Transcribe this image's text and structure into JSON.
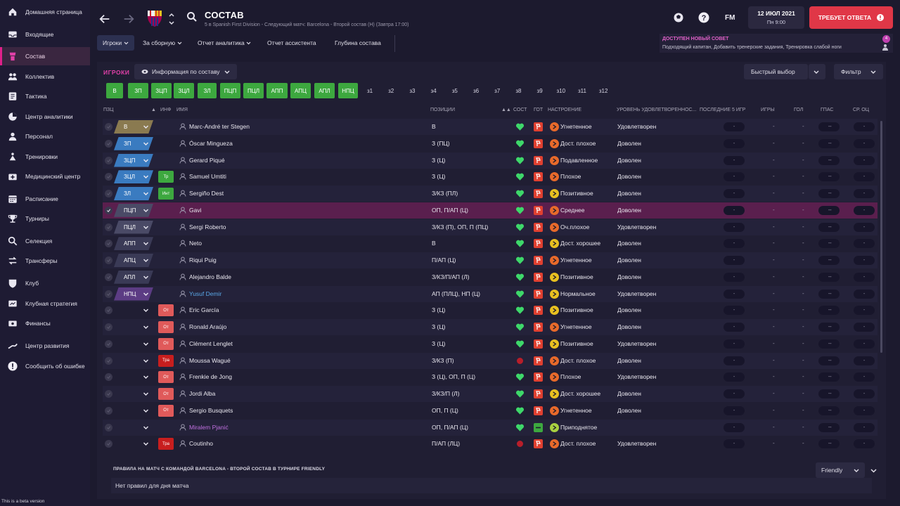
{
  "sidebar": {
    "items": [
      {
        "label": "Домашняя страница",
        "icon": "home-icon"
      },
      {
        "label": "Входящие",
        "icon": "inbox-icon"
      },
      {
        "label": "Состав",
        "icon": "squad-icon"
      },
      {
        "label": "Коллектив",
        "icon": "team-icon"
      },
      {
        "label": "Тактика",
        "icon": "tactics-icon"
      },
      {
        "label": "Центр аналитики",
        "icon": "analytics-icon"
      },
      {
        "label": "Персонал",
        "icon": "staff-icon"
      },
      {
        "label": "Тренировки",
        "icon": "training-icon"
      },
      {
        "label": "Медицинский центр",
        "icon": "medical-icon"
      },
      {
        "label": "Расписание",
        "icon": "calendar-icon"
      },
      {
        "label": "Турниры",
        "icon": "trophy-icon"
      },
      {
        "label": "Селекция",
        "icon": "scouting-icon"
      },
      {
        "label": "Трансферы",
        "icon": "transfers-icon"
      },
      {
        "label": "Клуб",
        "icon": "club-icon"
      },
      {
        "label": "Клубная стратегия",
        "icon": "strategy-icon"
      },
      {
        "label": "Финансы",
        "icon": "finance-icon"
      },
      {
        "label": "Центр развития",
        "icon": "development-icon"
      },
      {
        "label": "Сообщить об ошибке",
        "icon": "bug-report-icon"
      }
    ],
    "active_index": 2,
    "beta_note": "This is a beta version"
  },
  "header": {
    "title": "СОСТАВ",
    "subtitle": "5 в Spanish First Division - Следующий матч: Barcelona - Второй состав (Н) (Завтра 17:00)",
    "fm_label": "FM",
    "date": "12 ИЮЛ 2021",
    "time": "Пн 9:00",
    "response_label": "ТРЕБУЕТ ОТВЕТА",
    "tabs": [
      "Игроки",
      "За сборную",
      "Отчет аналитика",
      "Отчет ассистента",
      "Глубина состава"
    ],
    "notice_title": "ДОСТУПЕН НОВЫЙ СОВЕТ",
    "notice_text": "Подходящий капитан, Добавить тренерские задания, Тренировка слабой ноги",
    "notice_count": "4"
  },
  "main": {
    "section_title": "ИГРОКИ",
    "view_select": "Информация по составу",
    "quick_pick": "Быстрый выбор",
    "filter": "Фильтр",
    "position_filters": [
      "В",
      "ЗП",
      "ЗЦП",
      "ЗЦЛ",
      "ЗЛ",
      "ПЦП",
      "ПЦЛ",
      "АПП",
      "АПЦ",
      "АПЛ",
      "НПЦ"
    ],
    "number_filters": [
      "з1",
      "з2",
      "з3",
      "з4",
      "з5",
      "з6",
      "з7",
      "з8",
      "з9",
      "з10",
      "з11",
      "з12"
    ],
    "columns": {
      "pos": "ПЗЦ",
      "inf": "ИНФ",
      "name": "ИМЯ",
      "positions": "ПОЗИЦИИ",
      "cond": "СОСТ",
      "ready": "ГОТ",
      "mood": "НАСТРОЕНИЕ",
      "satisfaction": "УРОВЕНЬ УДОВЛЕТВОРЕННОС...",
      "last5": "ПОСЛЕДНИЕ 5 ИГР",
      "games": "ИГРЫ",
      "goals": "ГОЛ",
      "assists": "ГПАС",
      "avg": "СР. ОЦ"
    },
    "dash": "-",
    "players": [
      {
        "pos": "В",
        "cls": "gk",
        "badge": "",
        "bcls": "",
        "name": "Marc-André ter Stegen",
        "ncls": "",
        "positions": "В",
        "cond": "heart",
        "mood": "Угнетенное",
        "mood_color": "#e86a2a",
        "satisfaction": "Удовлетворен"
      },
      {
        "pos": "ЗП",
        "cls": "def",
        "badge": "",
        "bcls": "",
        "name": "Óscar Mingueza",
        "ncls": "",
        "positions": "З (ПЦ)",
        "cond": "heart",
        "mood": "Дост. плохое",
        "mood_color": "#e86a2a",
        "satisfaction": "Доволен"
      },
      {
        "pos": "ЗЦП",
        "cls": "def",
        "badge": "",
        "bcls": "",
        "name": "Gerard Piqué",
        "ncls": "",
        "positions": "З (Ц)",
        "cond": "heart",
        "mood": "Подавленное",
        "mood_color": "#e86a2a",
        "satisfaction": "Доволен"
      },
      {
        "pos": "ЗЦЛ",
        "cls": "def",
        "badge": "Тр",
        "bcls": "green",
        "name": "Samuel Umtiti",
        "ncls": "",
        "positions": "З (Ц)",
        "cond": "heart",
        "mood": "Плохое",
        "mood_color": "#e86a2a",
        "satisfaction": "Доволен"
      },
      {
        "pos": "ЗЛ",
        "cls": "def",
        "badge": "Инт",
        "bcls": "green",
        "name": "Sergiño Dest",
        "ncls": "",
        "positions": "З/КЗ (ПЛ)",
        "cond": "heart",
        "mood": "Позитивное",
        "mood_color": "#e8c020",
        "satisfaction": "Доволен"
      },
      {
        "pos": "ПЦП",
        "cls": "mid",
        "badge": "",
        "bcls": "",
        "name": "Gavi",
        "ncls": "",
        "positions": "ОП, П/АП (Ц)",
        "cond": "heart",
        "mood": "Среднее",
        "mood_color": "#e86a2a",
        "satisfaction": "Доволен"
      },
      {
        "pos": "ПЦЛ",
        "cls": "mid",
        "badge": "",
        "bcls": "",
        "name": "Sergi Roberto",
        "ncls": "",
        "positions": "З/КЗ (П), ОП, П (ПЦ)",
        "cond": "heart",
        "mood": "Оч.плохое",
        "mood_color": "#e86a2a",
        "satisfaction": "Удовлетворен"
      },
      {
        "pos": "АПП",
        "cls": "att",
        "badge": "",
        "bcls": "",
        "name": "Neto",
        "ncls": "",
        "positions": "В",
        "cond": "heart",
        "mood": "Дост. хорошее",
        "mood_color": "#e8c020",
        "satisfaction": "Доволен"
      },
      {
        "pos": "АПЦ",
        "cls": "att",
        "badge": "",
        "bcls": "",
        "name": "Riqui Puig",
        "ncls": "",
        "positions": "П/АП (Ц)",
        "cond": "heart",
        "mood": "Угнетенное",
        "mood_color": "#e86a2a",
        "satisfaction": "Доволен"
      },
      {
        "pos": "АПЛ",
        "cls": "att",
        "badge": "",
        "bcls": "",
        "name": "Alejandro Balde",
        "ncls": "",
        "positions": "З/КЗ/П/АП (Л)",
        "cond": "heart",
        "mood": "Позитивное",
        "mood_color": "#e8c020",
        "satisfaction": "Доволен"
      },
      {
        "pos": "НПЦ",
        "cls": "sub",
        "badge": "",
        "bcls": "",
        "name": "Yusuf Demir",
        "ncls": "blue",
        "positions": "АП (ПЛЦ), НП (Ц)",
        "cond": "heart",
        "mood": "Нормальное",
        "mood_color": "#e8c020",
        "satisfaction": "Удовлетворен"
      },
      {
        "pos": "",
        "cls": "",
        "badge": "От",
        "bcls": "red",
        "name": "Eric García",
        "ncls": "",
        "positions": "З (Ц)",
        "cond": "heart",
        "mood": "Позитивное",
        "mood_color": "#e8c020",
        "satisfaction": "Доволен"
      },
      {
        "pos": "",
        "cls": "",
        "badge": "От",
        "bcls": "red",
        "name": "Ronald Araújo",
        "ncls": "",
        "positions": "З (Ц)",
        "cond": "heart",
        "mood": "Угнетенное",
        "mood_color": "#e86a2a",
        "satisfaction": "Доволен"
      },
      {
        "pos": "",
        "cls": "",
        "badge": "От",
        "bcls": "red",
        "name": "Clément Lenglet",
        "ncls": "",
        "positions": "З (Ц)",
        "cond": "heart",
        "mood": "Позитивное",
        "mood_color": "#e8c020",
        "satisfaction": "Удовлетворен"
      },
      {
        "pos": "",
        "cls": "",
        "badge": "Тра",
        "bcls": "dark",
        "name": "Moussa Wagué",
        "ncls": "",
        "positions": "З/КЗ (П)",
        "cond": "dot",
        "mood": "Дост. плохое",
        "mood_color": "#e86a2a",
        "satisfaction": "Доволен"
      },
      {
        "pos": "",
        "cls": "",
        "badge": "От",
        "bcls": "red",
        "name": "Frenkie de Jong",
        "ncls": "",
        "positions": "З (Ц), ОП, П (Ц)",
        "cond": "heart",
        "mood": "Плохое",
        "mood_color": "#e86a2a",
        "satisfaction": "Удовлетворен"
      },
      {
        "pos": "",
        "cls": "",
        "badge": "От",
        "bcls": "red",
        "name": "Jordi Alba",
        "ncls": "",
        "positions": "З/КЗ/П (Л)",
        "cond": "heart",
        "mood": "Дост. хорошее",
        "mood_color": "#e8c020",
        "satisfaction": "Доволен"
      },
      {
        "pos": "",
        "cls": "",
        "badge": "От",
        "bcls": "red",
        "name": "Sergio Busquets",
        "ncls": "",
        "positions": "ОП, П (Ц)",
        "cond": "heart",
        "mood": "Угнетенное",
        "mood_color": "#e86a2a",
        "satisfaction": "Доволен"
      },
      {
        "pos": "",
        "cls": "",
        "badge": "",
        "bcls": "",
        "name": "Miralem Pjanić",
        "ncls": "purple",
        "positions": "ОП, П/АП (Ц)",
        "cond": "heart",
        "mood": "Приподнятое",
        "mood_color": "#a8d040",
        "satisfaction": ""
      },
      {
        "pos": "",
        "cls": "",
        "badge": "Тра",
        "bcls": "dark",
        "name": "Coutinho",
        "ncls": "",
        "positions": "П/АП (ЛЦ)",
        "cond": "dot",
        "mood": "Дост. плохое",
        "mood_color": "#e86a2a",
        "satisfaction": "Удовлетворен"
      }
    ],
    "selected_index": 5,
    "rules_title": "ПРАВИЛА НА МАТЧ С КОМАНДОЙ BARCELONA - ВТОРОЙ СОСТАВ В ТУРНИРЕ FRIENDLY",
    "rules_text": "Нет правил для дня матча",
    "rules_select": "Friendly"
  }
}
